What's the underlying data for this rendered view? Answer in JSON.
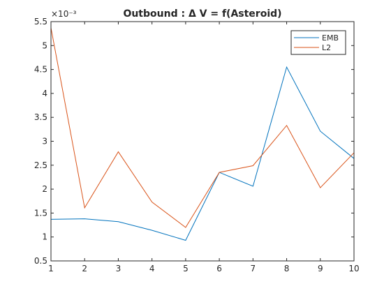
{
  "chart_data": {
    "type": "line",
    "title": "Outbound : Δ V = f(Asteroid)",
    "xlabel": "",
    "ylabel": "",
    "y_exponent": "×10⁻³",
    "xlim": [
      1,
      10
    ],
    "ylim": [
      0.5,
      5.5
    ],
    "x": [
      1,
      2,
      3,
      4,
      5,
      6,
      7,
      8,
      9,
      10
    ],
    "x_ticks": [
      "1",
      "2",
      "3",
      "4",
      "5",
      "6",
      "7",
      "8",
      "9",
      "10"
    ],
    "y_ticks": [
      0.5,
      1,
      1.5,
      2,
      2.5,
      3,
      3.5,
      4,
      4.5,
      5,
      5.5
    ],
    "y_tick_labels": [
      "0.5",
      "1",
      "1.5",
      "2",
      "2.5",
      "3",
      "3.5",
      "4",
      "4.5",
      "5",
      "5.5"
    ],
    "grid": false,
    "legend_position": "top-right",
    "series": [
      {
        "name": "EMB",
        "color": "#0072bd",
        "values": [
          1.37,
          1.38,
          1.32,
          1.14,
          0.93,
          2.35,
          2.06,
          4.55,
          3.21,
          2.64
        ]
      },
      {
        "name": "L2",
        "color": "#d95319",
        "values": [
          5.37,
          1.61,
          2.78,
          1.73,
          1.2,
          2.35,
          2.49,
          3.33,
          2.03,
          2.76
        ]
      }
    ]
  }
}
